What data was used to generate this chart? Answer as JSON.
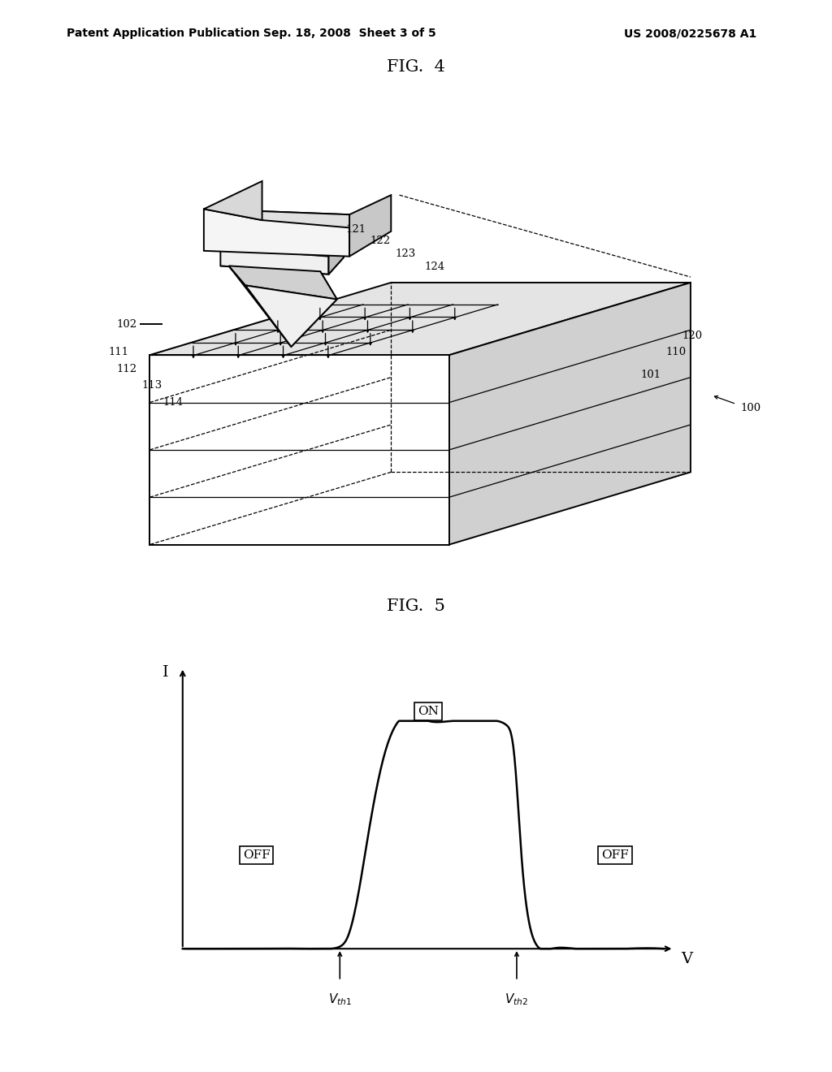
{
  "bg_color": "#ffffff",
  "header_left": "Patent Application Publication",
  "header_mid": "Sep. 18, 2008  Sheet 3 of 5",
  "header_right": "US 2008/0225678 A1",
  "fig4_title": "FIG.  4",
  "fig5_title": "FIG.  5",
  "curve_color": "#000000",
  "label_fontsize": 10,
  "header_fontsize": 10,
  "title_fontsize": 15,
  "vth1": 3.2,
  "vth2": 6.8,
  "i_on": 8.5,
  "i_off": 0.0
}
